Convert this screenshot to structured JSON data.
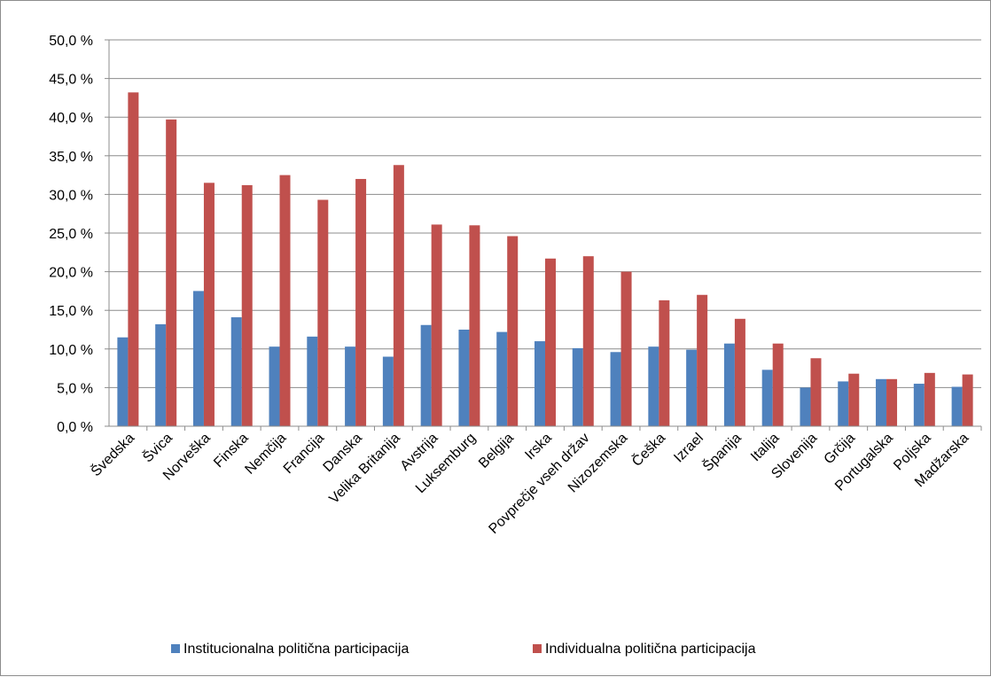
{
  "chart_data": {
    "type": "bar",
    "title": "",
    "xlabel": "",
    "ylabel": "",
    "ylim": [
      0,
      50
    ],
    "y_ticks": [
      "0,0 %",
      "5,0 %",
      "10,0 %",
      "15,0 %",
      "20,0 %",
      "25,0 %",
      "30,0 %",
      "35,0 %",
      "40,0 %",
      "45,0 %",
      "50,0 %"
    ],
    "grid": "horizontal",
    "legend_position": "bottom",
    "categories": [
      "Švedska",
      "Švica",
      "Norveška",
      "Finska",
      "Nemčija",
      "Francija",
      "Danska",
      "Velika Britanija",
      "Avstrija",
      "Luksemburg",
      "Belgija",
      "Irska",
      "Povprečje vseh držav",
      "Nizozemska",
      "Češka",
      "Izrael",
      "Španija",
      "Italija",
      "Slovenija",
      "Grčija",
      "Portugalska",
      "Poljska",
      "Madžarska"
    ],
    "series": [
      {
        "name": "Institucionalna politična participacija",
        "color": "#4f81bd",
        "values": [
          11.5,
          13.2,
          17.5,
          14.1,
          10.3,
          11.6,
          10.3,
          9.0,
          13.1,
          12.5,
          12.2,
          11.0,
          10.1,
          9.6,
          10.3,
          9.9,
          10.7,
          7.3,
          5.0,
          5.8,
          6.1,
          5.5,
          5.1
        ]
      },
      {
        "name": "Individualna politična participacija",
        "color": "#c0504d",
        "values": [
          43.2,
          39.7,
          31.5,
          31.2,
          32.5,
          29.3,
          32.0,
          33.8,
          26.1,
          26.0,
          24.6,
          21.7,
          22.0,
          20.0,
          16.3,
          17.0,
          13.9,
          10.7,
          8.8,
          6.8,
          6.1,
          6.9,
          6.7
        ]
      }
    ]
  }
}
